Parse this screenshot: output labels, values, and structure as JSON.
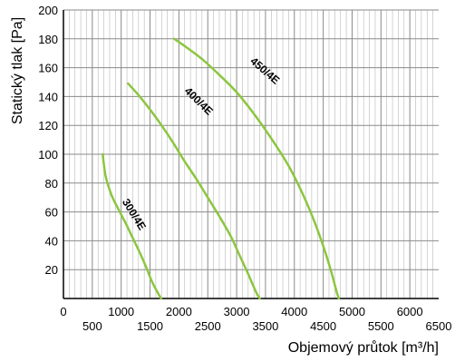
{
  "chart_data": {
    "type": "line",
    "xlabel": "Objemový průtok [m³/h]",
    "ylabel": "Statický tlak [Pa]",
    "xlim": [
      0,
      6500
    ],
    "ylim": [
      0,
      200
    ],
    "x_ticks": [
      0,
      500,
      1000,
      1500,
      2000,
      2500,
      3000,
      3500,
      4000,
      4500,
      5000,
      5500,
      6000,
      6500
    ],
    "y_ticks": [
      20,
      40,
      60,
      80,
      100,
      120,
      140,
      160,
      180,
      200
    ],
    "grid": true,
    "legend": "none",
    "line_color": "#8cc63f",
    "series": [
      {
        "name": "300/4E",
        "points": [
          [
            680,
            100
          ],
          [
            730,
            85
          ],
          [
            830,
            72
          ],
          [
            950,
            62
          ],
          [
            1080,
            52
          ],
          [
            1200,
            42
          ],
          [
            1320,
            32
          ],
          [
            1430,
            22
          ],
          [
            1530,
            12
          ],
          [
            1620,
            5
          ],
          [
            1690,
            0
          ]
        ]
      },
      {
        "name": "400/4E",
        "points": [
          [
            1120,
            149
          ],
          [
            1300,
            141
          ],
          [
            1500,
            131
          ],
          [
            1700,
            120
          ],
          [
            1900,
            108
          ],
          [
            2100,
            95
          ],
          [
            2300,
            83
          ],
          [
            2500,
            70
          ],
          [
            2700,
            57
          ],
          [
            2900,
            43
          ],
          [
            3050,
            30
          ],
          [
            3200,
            17
          ],
          [
            3330,
            5
          ],
          [
            3400,
            0
          ]
        ]
      },
      {
        "name": "450/4E",
        "points": [
          [
            1920,
            180
          ],
          [
            2100,
            175
          ],
          [
            2400,
            166
          ],
          [
            2700,
            155
          ],
          [
            3000,
            143
          ],
          [
            3300,
            128
          ],
          [
            3600,
            111
          ],
          [
            3900,
            92
          ],
          [
            4150,
            72
          ],
          [
            4350,
            53
          ],
          [
            4520,
            34
          ],
          [
            4650,
            17
          ],
          [
            4730,
            5
          ],
          [
            4770,
            0
          ]
        ]
      }
    ],
    "annotations": [
      {
        "text": "300/4E",
        "x": 1170,
        "y": 57
      },
      {
        "text": "400/4E",
        "x": 2300,
        "y": 135
      },
      {
        "text": "450/4E",
        "x": 3450,
        "y": 156
      }
    ]
  }
}
